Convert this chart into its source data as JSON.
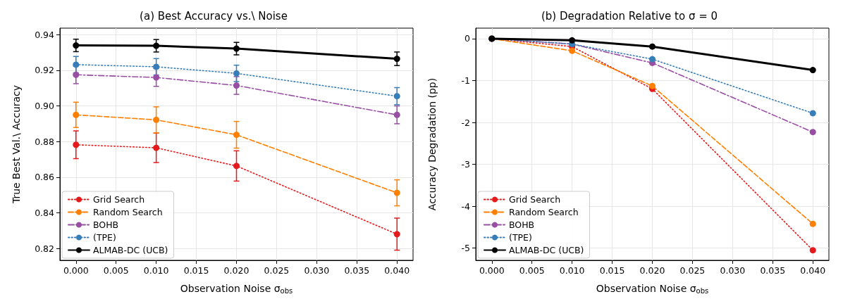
{
  "chart_data": [
    {
      "type": "line",
      "title": "(a) Best Accuracy vs.\\ Noise",
      "xlabel": "Observation Noise σ$_{obs}$",
      "ylabel": "True Best Val.\\ Accuracy",
      "x": [
        0,
        0.01,
        0.02,
        0.04
      ],
      "xlim": [
        -0.002,
        0.042
      ],
      "xticks": [
        {
          "value": 0,
          "label": "0.000"
        },
        0.005,
        {
          "value": 0.01,
          "label": "0.010"
        },
        0.015,
        {
          "value": 0.02,
          "label": "0.020"
        },
        0.025,
        {
          "value": 0.03,
          "label": "0.030"
        },
        0.035,
        {
          "value": 0.04,
          "label": "0.040"
        }
      ],
      "ylim": [
        0.8133,
        0.9437
      ],
      "yticks": [
        0.82,
        0.84,
        0.86,
        0.88,
        {
          "value": 0.9,
          "label": "0.90"
        },
        0.92,
        0.94
      ],
      "grid": true,
      "legend": "bottom left",
      "marker": "circle",
      "series": [
        {
          "name": "Grid Search",
          "color": "#e41a1c",
          "line_style": "dotted",
          "values": [
            0.8782,
            0.8765,
            0.8663,
            0.828
          ],
          "errors": [
            0.0078,
            0.0083,
            0.0085,
            0.009
          ]
        },
        {
          "name": "Random Search",
          "color": "#ff7f00",
          "line_style": "dashed",
          "values": [
            0.895,
            0.8922,
            0.8838,
            0.8512
          ],
          "errors": [
            0.0071,
            0.0073,
            0.0075,
            0.0073
          ]
        },
        {
          "name": "BOHB",
          "color": "#984ea3",
          "line_style": "dashdot",
          "values": [
            0.9175,
            0.916,
            0.9115,
            0.895
          ],
          "errors": [
            0.005,
            0.005,
            0.005,
            0.005
          ]
        },
        {
          "name": "(TPE)",
          "color": "#377eb8",
          "line_style": "dotted",
          "values": [
            0.9232,
            0.922,
            0.9183,
            0.9055
          ],
          "errors": [
            0.0046,
            0.0046,
            0.0046,
            0.0048
          ]
        },
        {
          "name": "ALMAB-DC (UCB)",
          "color": "#000000",
          "line_style": "solid",
          "values": [
            0.934,
            0.9338,
            0.9322,
            0.9265
          ],
          "errors": [
            0.0035,
            0.0035,
            0.0035,
            0.0038
          ]
        }
      ]
    },
    {
      "type": "line",
      "title": "(b) Degradation Relative to σ = 0",
      "xlabel": "Observation Noise σ$_{obs}$",
      "ylabel": "Accuracy Degradation (pp)",
      "x": [
        0,
        0.01,
        0.02,
        0.04
      ],
      "xlim": [
        -0.002,
        0.042
      ],
      "xticks": [
        {
          "value": 0,
          "label": "0.000"
        },
        0.005,
        {
          "value": 0.01,
          "label": "0.010"
        },
        0.015,
        {
          "value": 0.02,
          "label": "0.020"
        },
        0.025,
        {
          "value": 0.03,
          "label": "0.030"
        },
        0.035,
        {
          "value": 0.04,
          "label": "0.040"
        }
      ],
      "ylim": [
        -5.29,
        0.25
      ],
      "yticks": [
        -5,
        -4,
        -3,
        -2,
        -1,
        0
      ],
      "grid": true,
      "legend": "bottom left",
      "marker": "circle",
      "series": [
        {
          "name": "Grid Search",
          "color": "#e41a1c",
          "line_style": "dotted",
          "values": [
            0,
            -0.19,
            -1.2,
            -5.05
          ]
        },
        {
          "name": "Random Search",
          "color": "#ff7f00",
          "line_style": "dashed",
          "values": [
            0,
            -0.29,
            -1.13,
            -4.42
          ]
        },
        {
          "name": "BOHB",
          "color": "#984ea3",
          "line_style": "dashdot",
          "values": [
            0,
            -0.13,
            -0.58,
            -2.23
          ]
        },
        {
          "name": "(TPE)",
          "color": "#377eb8",
          "line_style": "dotted",
          "values": [
            0,
            -0.13,
            -0.49,
            -1.78
          ]
        },
        {
          "name": "ALMAB-DC (UCB)",
          "color": "#000000",
          "line_style": "solid",
          "values": [
            0,
            -0.04,
            -0.19,
            -0.75
          ]
        }
      ]
    }
  ]
}
